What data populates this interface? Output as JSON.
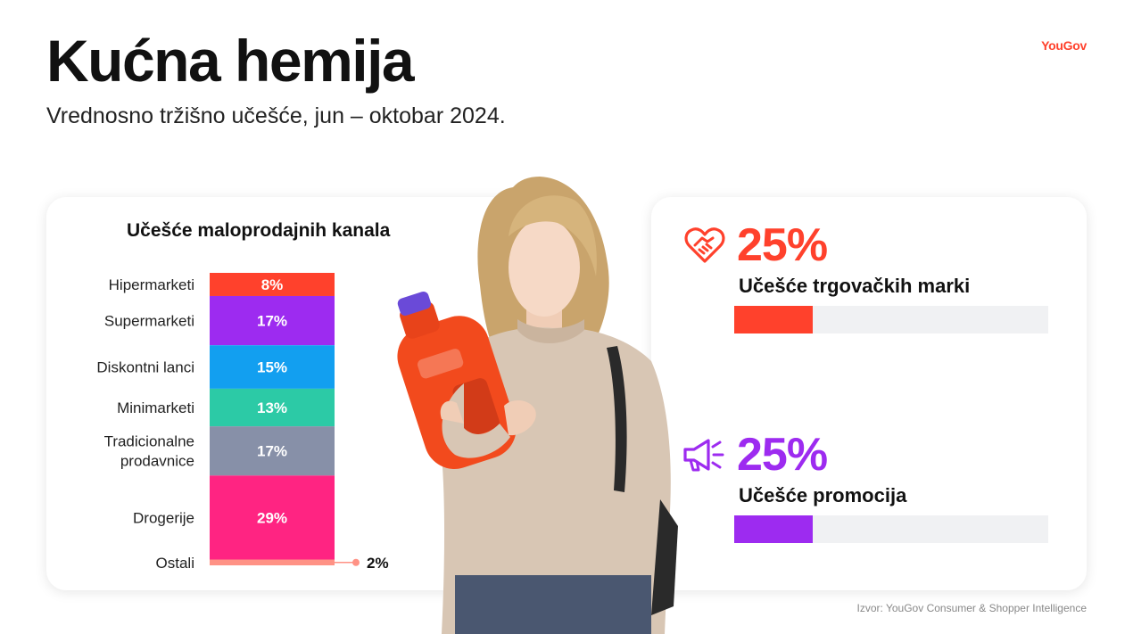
{
  "header": {
    "title": "Kućna hemija",
    "subtitle": "Vrednosno tržišno učešće, jun – oktobar 2024.",
    "logo": "YouGov"
  },
  "chart_data": {
    "type": "bar",
    "stacked": true,
    "orientation": "vertical",
    "title": "Učešće maloprodajnih kanala",
    "unit": "%",
    "series": [
      {
        "name": "Hipermarketi",
        "value": 8,
        "label": "8%",
        "color": "#ff412c"
      },
      {
        "name": "Supermarketi",
        "value": 17,
        "label": "17%",
        "color": "#9d2bf0"
      },
      {
        "name": "Diskontni lanci",
        "value": 15,
        "label": "15%",
        "color": "#129ff0"
      },
      {
        "name": "Minimarketi",
        "value": 13,
        "label": "13%",
        "color": "#2ccaa6"
      },
      {
        "name": "Tradicionalne\nprodavnice",
        "value": 17,
        "label": "17%",
        "color": "#8790a8"
      },
      {
        "name": "Drogerije",
        "value": 29,
        "label": "29%",
        "color": "#ff2482"
      },
      {
        "name": "Ostali",
        "value": 2,
        "label": "2%",
        "color": "#ff9285"
      }
    ]
  },
  "kpis": [
    {
      "value": "25%",
      "label": "Učešće trgovačkih marki",
      "share": 0.25,
      "color": "#ff412c",
      "icon": "heart-handshake-icon"
    },
    {
      "value": "25%",
      "label": "Učešće promocija",
      "share": 0.25,
      "color": "#9d2bf0",
      "icon": "megaphone-icon"
    }
  ],
  "footer": {
    "source": "Izvor: YouGov Consumer & Shopper Intelligence"
  }
}
